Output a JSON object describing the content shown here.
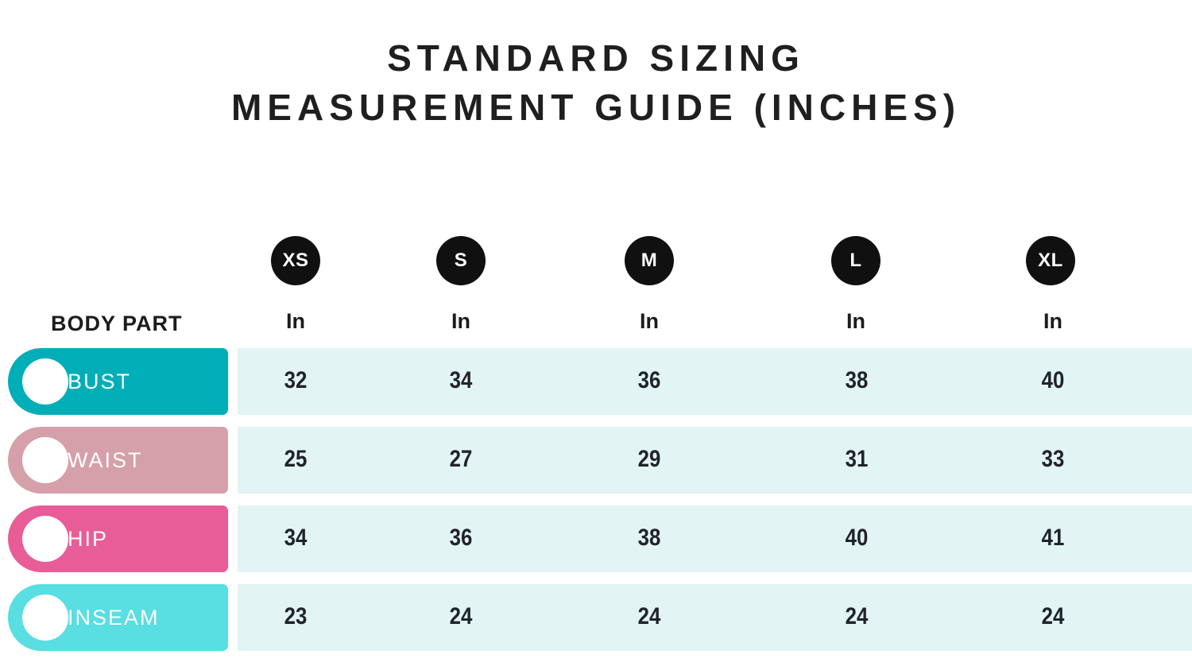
{
  "title": {
    "line1": "STANDARD SIZING",
    "line2": "MEASUREMENT GUIDE (INCHES)"
  },
  "header": {
    "body_part_label": "BODY PART",
    "sizes": [
      {
        "label": "XS",
        "unit": "In"
      },
      {
        "label": "S",
        "unit": "In"
      },
      {
        "label": "M",
        "unit": "In"
      },
      {
        "label": "L",
        "unit": "In"
      },
      {
        "label": "XL",
        "unit": "In"
      }
    ]
  },
  "rows": [
    {
      "label": "BUST",
      "color": "#00AEB7",
      "values": [
        "32",
        "34",
        "36",
        "38",
        "40"
      ]
    },
    {
      "label": "WAIST",
      "color": "#D5A0A9",
      "values": [
        "25",
        "27",
        "29",
        "31",
        "33"
      ]
    },
    {
      "label": "HIP",
      "color": "#E85D97",
      "values": [
        "34",
        "36",
        "38",
        "40",
        "41"
      ]
    },
    {
      "label": "INSEAM",
      "color": "#59DEE1",
      "values": [
        "23",
        "24",
        "24",
        "24",
        "24"
      ]
    }
  ],
  "colors": {
    "title_text": "#1F1F1F",
    "size_badge_bg": "#101010",
    "size_badge_text": "#FFFFFF",
    "row_band_bg": "#E2F4F4",
    "row_label_text": "#FFFFFF",
    "cell_text": "#20242A"
  },
  "chart_data": {
    "type": "table",
    "title": "STANDARD SIZING MEASUREMENT GUIDE (INCHES)",
    "unit": "inches",
    "columns": [
      "BODY PART",
      "XS (In)",
      "S (In)",
      "M (In)",
      "L (In)",
      "XL (In)"
    ],
    "rows": [
      [
        "BUST",
        32,
        34,
        36,
        38,
        40
      ],
      [
        "WAIST",
        25,
        27,
        29,
        31,
        33
      ],
      [
        "HIP",
        34,
        36,
        38,
        40,
        41
      ],
      [
        "INSEAM",
        23,
        24,
        24,
        24,
        24
      ]
    ]
  }
}
